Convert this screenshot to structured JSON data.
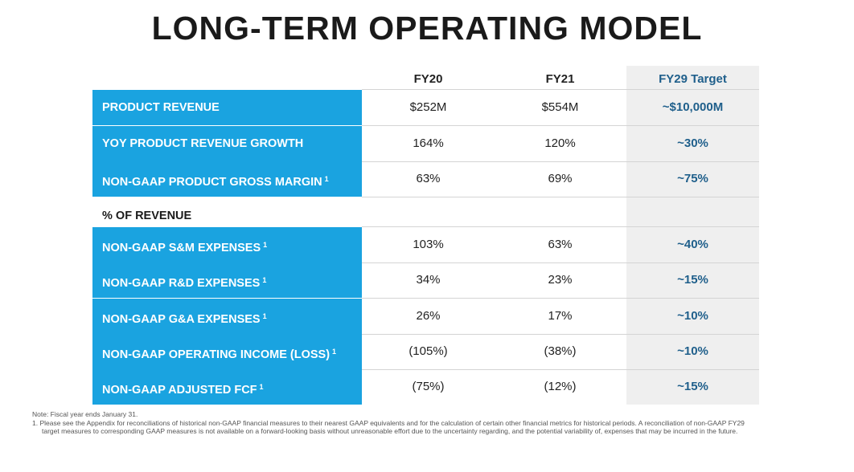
{
  "title": "LONG-TERM OPERATING MODEL",
  "columns": [
    "FY20",
    "FY21",
    "FY29 Target"
  ],
  "section_label": "% OF REVENUE",
  "rows_top": [
    {
      "label": "PRODUCT REVENUE",
      "note": "",
      "fy20": "$252M",
      "fy21": "$554M",
      "target": "~$10,000M"
    },
    {
      "label": "YOY PRODUCT REVENUE GROWTH",
      "note": "",
      "fy20": "164%",
      "fy21": "120%",
      "target": "~30%"
    },
    {
      "label": "NON-GAAP PRODUCT GROSS MARGIN",
      "note": "1",
      "fy20": "63%",
      "fy21": "69%",
      "target": "~75%"
    }
  ],
  "rows_bottom": [
    {
      "label": "NON-GAAP S&M EXPENSES",
      "note": "1",
      "fy20": "103%",
      "fy21": "63%",
      "target": "~40%"
    },
    {
      "label": "NON-GAAP R&D EXPENSES",
      "note": "1",
      "fy20": "34%",
      "fy21": "23%",
      "target": "~15%"
    },
    {
      "label": "NON-GAAP G&A EXPENSES",
      "note": "1",
      "fy20": "26%",
      "fy21": "17%",
      "target": "~10%"
    },
    {
      "label": "NON-GAAP OPERATING INCOME (LOSS)",
      "note": "1",
      "fy20": "(105%)",
      "fy21": "(38%)",
      "target": "~10%"
    },
    {
      "label": "NON-GAAP ADJUSTED FCF",
      "note": "1",
      "fy20": "(75%)",
      "fy21": "(12%)",
      "target": "~15%"
    }
  ],
  "notes": {
    "line1": "Note: Fiscal year ends January 31.",
    "line2": "1.  Please see the Appendix for reconciliations of historical non-GAAP financial measures to their nearest GAAP equivalents and for the calculation of certain other financial metrics for historical periods. A reconciliation of non-GAAP FY29 target measures to corresponding GAAP measures is not available on a forward-looking basis without unreasonable effort due to the uncertainty regarding, and the potential variability of, expenses that may be incurred in the future."
  },
  "colors": {
    "label_bg": "#1aa3e0",
    "target_bg": "#efefef",
    "target_text": "#1f5f8b"
  }
}
